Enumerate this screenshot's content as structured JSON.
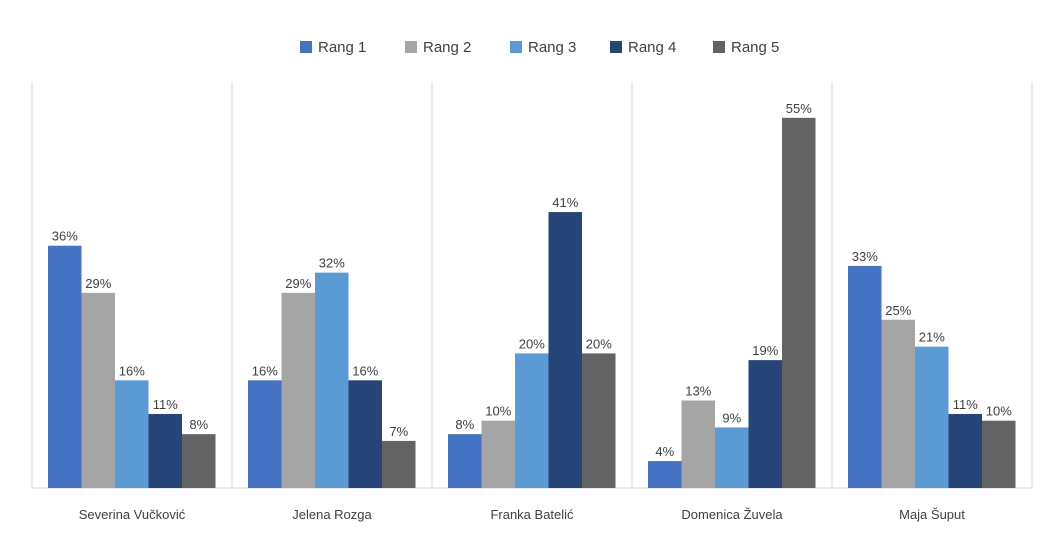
{
  "chart_data": {
    "type": "bar",
    "categories": [
      "Severina Vučković",
      "Jelena Rozga",
      "Franka Batelić",
      "Domenica Žuvela",
      "Maja Šuput"
    ],
    "series": [
      {
        "name": "Rang 1",
        "values": [
          36,
          16,
          8,
          4,
          33
        ],
        "labels": [
          "36%",
          "16%",
          "8%",
          "4%",
          "33%"
        ]
      },
      {
        "name": "Rang 2",
        "values": [
          29,
          29,
          10,
          13,
          25
        ],
        "labels": [
          "29%",
          "29%",
          "10%",
          "13%",
          "25%"
        ]
      },
      {
        "name": "Rang 3",
        "values": [
          16,
          32,
          20,
          9,
          21
        ],
        "labels": [
          "16%",
          "32%",
          "20%",
          "9%",
          "21%"
        ]
      },
      {
        "name": "Rang 4",
        "values": [
          11,
          16,
          41,
          19,
          11
        ],
        "labels": [
          "11%",
          "16%",
          "41%",
          "19%",
          "11%"
        ]
      },
      {
        "name": "Rang 5",
        "values": [
          8,
          7,
          20,
          55,
          10
        ],
        "labels": [
          "8%",
          "7%",
          "20%",
          "55%",
          "10%"
        ]
      }
    ],
    "colors": [
      "#4472C4",
      "#A5A5A5",
      "#5B9BD5",
      "#264478",
      "#636363"
    ],
    "ylim": [
      0,
      60
    ],
    "ylabel": "",
    "xlabel": "",
    "legend": "top-center",
    "grid": "vertical-separators"
  }
}
